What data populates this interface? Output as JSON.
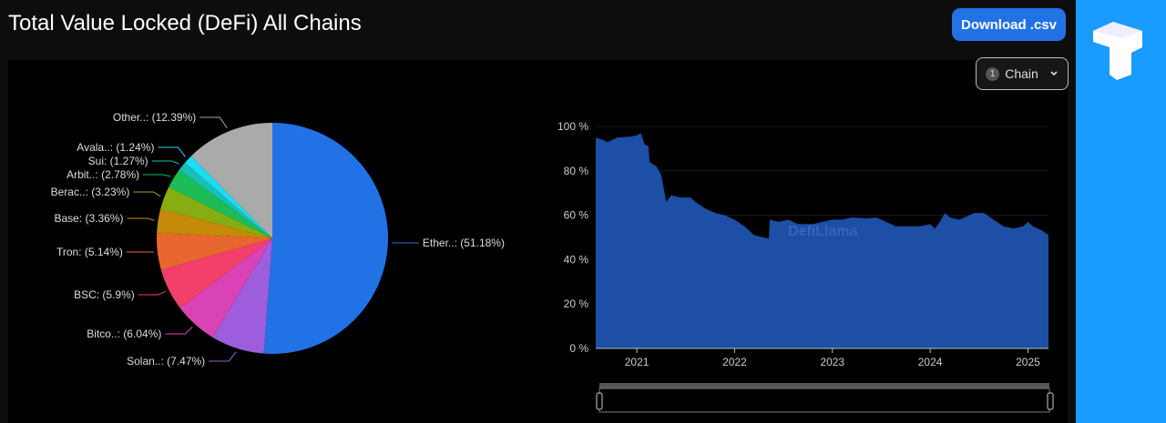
{
  "header": {
    "title": "Total Value Locked (DeFi) All Chains",
    "download_label": "Download .csv"
  },
  "filter": {
    "count": "1",
    "label": "Chain"
  },
  "chart_data": [
    {
      "type": "pie",
      "title": "",
      "slices": [
        {
          "label": "Ether..",
          "value": 51.18,
          "display": "Ether..: (51.18%)",
          "color": "#2172e5"
        },
        {
          "label": "Solan..",
          "value": 7.47,
          "display": "Solan..: (7.47%)",
          "color": "#9d5ddc"
        },
        {
          "label": "Bitco..",
          "value": 6.04,
          "display": "Bitco..: (6.04%)",
          "color": "#d943b6"
        },
        {
          "label": "BSC",
          "value": 5.9,
          "display": "BSC: (5.9%)",
          "color": "#f23f6a"
        },
        {
          "label": "Tron",
          "value": 5.14,
          "display": "Tron: (5.14%)",
          "color": "#e8672f"
        },
        {
          "label": "Base",
          "value": 3.36,
          "display": "Base: (3.36%)",
          "color": "#c58b08"
        },
        {
          "label": "Berac..",
          "value": 3.23,
          "display": "Berac..: (3.23%)",
          "color": "#86ae12"
        },
        {
          "label": "Arbit..",
          "value": 2.78,
          "display": "Arbit..: (2.78%)",
          "color": "#1cbd55"
        },
        {
          "label": "Sui",
          "value": 1.27,
          "display": "Sui: (1.27%)",
          "color": "#19c0b5"
        },
        {
          "label": "Avala..",
          "value": 1.24,
          "display": "Avala..: (1.24%)",
          "color": "#1ddcf5"
        },
        {
          "label": "Other..",
          "value": 12.39,
          "display": "Other..: (12.39%)",
          "color": "#aaaaaa"
        }
      ]
    },
    {
      "type": "area",
      "title": "",
      "xlabel": "",
      "ylabel": "",
      "xlim": [
        2020.58,
        2025.21
      ],
      "ylim": [
        0,
        100
      ],
      "x_ticks": [
        {
          "v": 2021,
          "label": "2021"
        },
        {
          "v": 2022,
          "label": "2022"
        },
        {
          "v": 2023,
          "label": "2023"
        },
        {
          "v": 2024,
          "label": "2024"
        },
        {
          "v": 2025,
          "label": "2025"
        }
      ],
      "y_ticks": [
        {
          "v": 0,
          "label": "0 %"
        },
        {
          "v": 20,
          "label": "20 %"
        },
        {
          "v": 40,
          "label": "40 %"
        },
        {
          "v": 60,
          "label": "60 %"
        },
        {
          "v": 80,
          "label": "80 %"
        },
        {
          "v": 100,
          "label": "100 %"
        }
      ],
      "watermark": "DefiLlama",
      "color": "#1c4fa5",
      "x": [
        2020.58,
        2020.65,
        2020.7,
        2020.8,
        2020.95,
        2021.0,
        2021.04,
        2021.08,
        2021.12,
        2021.13,
        2021.2,
        2021.25,
        2021.28,
        2021.3,
        2021.35,
        2021.45,
        2021.55,
        2021.6,
        2021.7,
        2021.8,
        2021.9,
        2022.0,
        2022.1,
        2022.15,
        2022.2,
        2022.3,
        2022.35,
        2022.36,
        2022.45,
        2022.55,
        2022.65,
        2022.8,
        2022.9,
        2023.0,
        2023.1,
        2023.2,
        2023.35,
        2023.45,
        2023.55,
        2023.65,
        2023.75,
        2023.9,
        2024.0,
        2024.05,
        2024.1,
        2024.15,
        2024.2,
        2024.3,
        2024.4,
        2024.45,
        2024.55,
        2024.65,
        2024.75,
        2024.85,
        2024.95,
        2025.0,
        2025.05,
        2025.15,
        2025.21
      ],
      "y": [
        95,
        94,
        93,
        95,
        95.5,
        96,
        97,
        92,
        91,
        84,
        82,
        78,
        71,
        66,
        69,
        68,
        68,
        66,
        63,
        61,
        60,
        58,
        55,
        53,
        51,
        50,
        49.5,
        58,
        57,
        58,
        56,
        56,
        57,
        58,
        58,
        59,
        58.5,
        59,
        57,
        55,
        55,
        55,
        56,
        54,
        57,
        61,
        59,
        58,
        60,
        61,
        61,
        58,
        55,
        54,
        55,
        57,
        55,
        53,
        51
      ]
    }
  ]
}
